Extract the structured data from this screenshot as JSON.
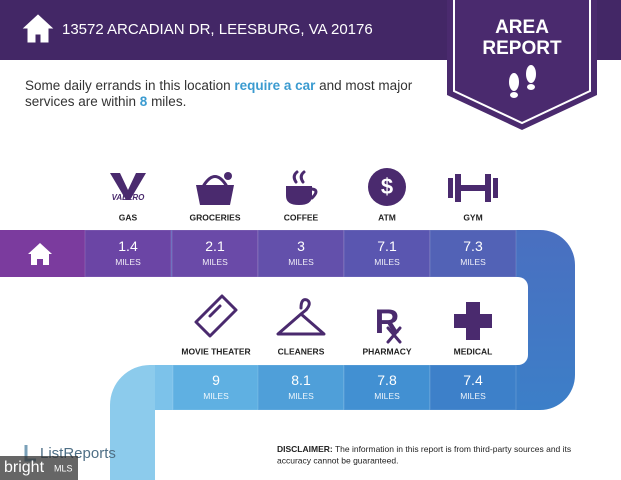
{
  "header": {
    "address": "13572 ARCADIAN DR, LEESBURG, VA 20176",
    "badge_line1": "AREA",
    "badge_line2": "REPORT"
  },
  "intro": {
    "line1_text": "Some daily errands in this location ",
    "line1_highlight": "require a car",
    "line1_end": " and most major",
    "line2_text": "services are within ",
    "line2_highlight": "8",
    "line2_end": " miles."
  },
  "amenities": [
    {
      "label": "GAS",
      "distance": 1.4,
      "unit": "MILES"
    },
    {
      "label": "GROCERIES",
      "distance": 2.1,
      "unit": "MILES"
    },
    {
      "label": "COFFEE",
      "distance": 3,
      "unit": "MILES"
    },
    {
      "label": "ATM",
      "distance": 7.1,
      "unit": "MILES"
    },
    {
      "label": "GYM",
      "distance": 7.3,
      "unit": "MILES"
    },
    {
      "label": "MOVIE THEATER",
      "distance": 9,
      "unit": "MILES"
    },
    {
      "label": "CLEANERS",
      "distance": 8.1,
      "unit": "MILES"
    },
    {
      "label": "PHARMACY",
      "distance": 7.8,
      "unit": "MILES"
    },
    {
      "label": "MEDICAL",
      "distance": 7.4,
      "unit": "MILES"
    }
  ],
  "icon_texts": {
    "valero": "VALERO",
    "atm": "$"
  },
  "footer": {
    "brand": "ListReports",
    "disclaimer_label": "DISCLAIMER:",
    "disclaimer_line1": " The information in this report is from third-party sources and its",
    "disclaimer_line2": "accuracy cannot be guaranteed.",
    "watermark_brand": "bright",
    "watermark_mls": "MLS"
  }
}
